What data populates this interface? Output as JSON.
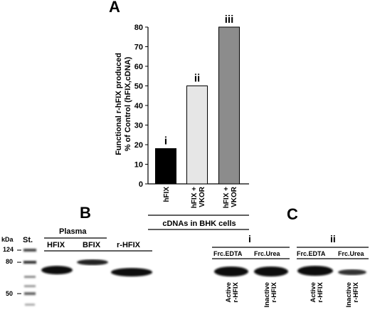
{
  "panelA": {
    "letter": "A",
    "ylabel_line1": "Functional r-hFIX produced",
    "ylabel_line2": "% of Control (hFIX,cDNA)",
    "xgroup_label": "cDNAs in BHK cells",
    "chart_data": {
      "type": "bar",
      "categories": [
        "hFIX",
        "hFIX + VKOR",
        "hFIX + VKOR"
      ],
      "bar_markers": [
        "i",
        "ii",
        "iii"
      ],
      "values": [
        18,
        50,
        80
      ],
      "ylim": [
        0,
        80
      ],
      "yticks": [
        0,
        10,
        20,
        30,
        40,
        50,
        60,
        70,
        80
      ],
      "colors": [
        "#000000",
        "#e6e6e6",
        "#8c8c8c"
      ],
      "grid": false
    }
  },
  "panelB": {
    "letter": "B",
    "kda_label": "kDa",
    "std_label": "St.",
    "markers": [
      "124",
      "80",
      "50"
    ],
    "plasma_label": "Plasma",
    "lanes": [
      "HFIX",
      "BFIX",
      "r-HFIX"
    ]
  },
  "panelC": {
    "letter": "C",
    "group_i": "i",
    "group_ii": "ii",
    "fractions": [
      "Frc.EDTA",
      "Frc.Urea",
      "Frc.EDTA",
      "Frc.Urea"
    ],
    "lane_labels": [
      "Active r-HFIX",
      "Inactive r-HFIX",
      "Active r-HFIX",
      "Inactive r-HFIX"
    ]
  }
}
